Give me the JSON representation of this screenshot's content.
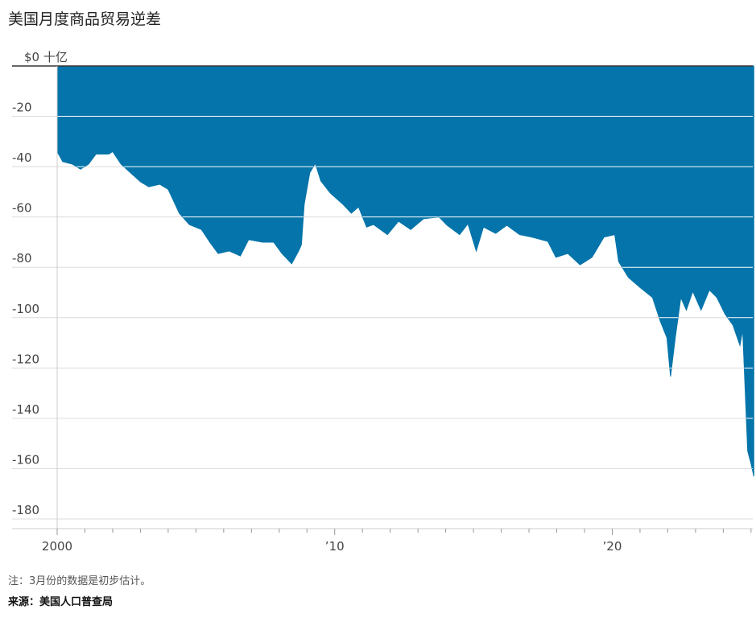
{
  "chart_data": {
    "type": "area",
    "title": "美国月度商品贸易逆差",
    "note": "注：3月份的数据是初步估计。",
    "source": "来源：美国人口普查局",
    "color": "#0574aa",
    "grid": true,
    "x": [
      2000.0,
      2000.2,
      2000.55,
      2000.84,
      2001.13,
      2001.4,
      2001.86,
      2002.0,
      2002.3,
      2002.6,
      2003.0,
      2003.3,
      2003.7,
      2004.0,
      2004.4,
      2004.76,
      2005.2,
      2005.5,
      2005.8,
      2006.2,
      2006.6,
      2006.9,
      2007.4,
      2007.8,
      2008.1,
      2008.45,
      2008.7,
      2008.8,
      2008.9,
      2009.1,
      2009.3,
      2009.5,
      2009.84,
      2010.3,
      2010.6,
      2010.86,
      2011.15,
      2011.4,
      2011.9,
      2012.3,
      2012.74,
      2013.2,
      2013.76,
      2014.05,
      2014.5,
      2014.8,
      2015.1,
      2015.36,
      2015.8,
      2016.2,
      2016.66,
      2017.1,
      2017.68,
      2017.97,
      2018.4,
      2018.84,
      2019.27,
      2019.7,
      2020.09,
      2020.23,
      2020.58,
      2021.0,
      2021.45,
      2021.74,
      2021.97,
      2022.1,
      2022.27,
      2022.47,
      2022.67,
      2022.9,
      2023.2,
      2023.5,
      2023.77,
      2024.06,
      2024.35,
      2024.6,
      2024.7,
      2024.88,
      2025.0,
      2025.1
    ],
    "values": [
      -34,
      -38,
      -39,
      -41,
      -39,
      -35,
      -35,
      -34,
      -39,
      -42,
      -46,
      -48,
      -47,
      -49,
      -58.5,
      -63,
      -65,
      -70,
      -74.5,
      -73.5,
      -75.5,
      -69,
      -70,
      -70,
      -74.5,
      -78.6,
      -73.5,
      -71,
      -55,
      -42.5,
      -38.7,
      -45.7,
      -50.5,
      -55,
      -58.5,
      -56,
      -64,
      -63,
      -67,
      -61.7,
      -65,
      -60.7,
      -60,
      -63.3,
      -67,
      -62.7,
      -73.5,
      -64,
      -66.5,
      -63.3,
      -67,
      -68,
      -69.7,
      -76,
      -74.5,
      -79,
      -76,
      -68,
      -67,
      -77.7,
      -84,
      -88,
      -92,
      -101.7,
      -108,
      -123.4,
      -108,
      -92,
      -97,
      -89.5,
      -97,
      -89,
      -92,
      -98.5,
      -103,
      -111,
      -105,
      -153,
      -158,
      -163
    ],
    "xlim": [
      2000,
      2025.15
    ],
    "xticks": [
      2000,
      {
        "value": 2010,
        "label": "’10"
      },
      {
        "value": 2020,
        "label": "’20"
      }
    ],
    "minor_xticks": [
      2001,
      2002,
      2003,
      2004,
      2005,
      2006,
      2007,
      2008,
      2009,
      2011,
      2012,
      2013,
      2014,
      2015,
      2016,
      2017,
      2018,
      2019,
      2021,
      2022,
      2023,
      2024,
      2025
    ],
    "ylim": [
      -180,
      0
    ],
    "yticks": [
      {
        "value": 0,
        "label": "$0 十亿"
      },
      -20,
      -40,
      -60,
      -80,
      -100,
      -120,
      -140,
      -160,
      -180
    ]
  }
}
